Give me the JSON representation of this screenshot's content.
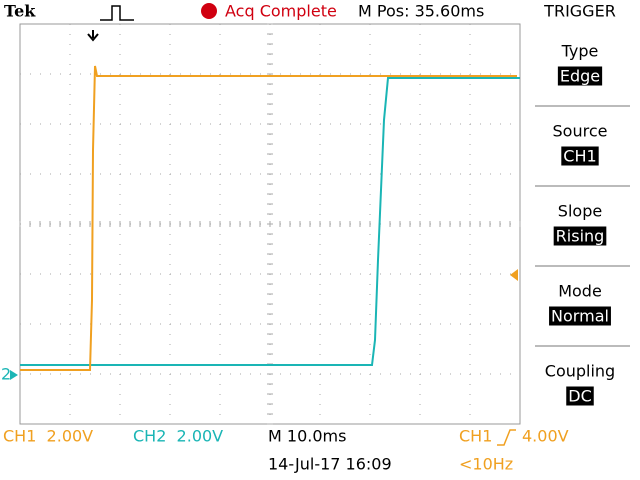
{
  "header": {
    "brand": "Tek",
    "acq_status": "Acq Complete",
    "m_pos": "M Pos: 35.60ms",
    "menu_title": "TRIGGER"
  },
  "menu": [
    {
      "label": "Type",
      "value": "Edge"
    },
    {
      "label": "Source",
      "value": "CH1"
    },
    {
      "label": "Slope",
      "value": "Rising"
    },
    {
      "label": "Mode",
      "value": "Normal"
    },
    {
      "label": "Coupling",
      "value": "DC"
    }
  ],
  "ch2_marker": "2",
  "status": {
    "ch1": "CH1  2.00V",
    "ch2": "CH2  2.00V",
    "timebase": "M 10.0ms",
    "trigger_source": "CH1",
    "trigger_level": "4.00V",
    "date": "14-Jul-17 16:09",
    "frequency": "<10Hz"
  }
}
